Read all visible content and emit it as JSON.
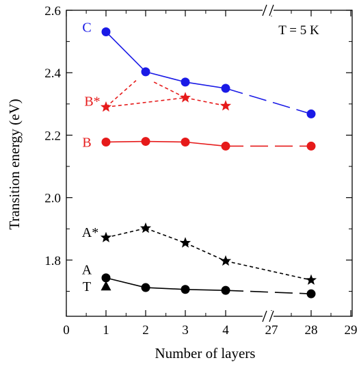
{
  "chart_data": {
    "type": "line",
    "xlabel": "Number of layers",
    "ylabel": "Transition energy (eV)",
    "x_ticks": [
      "0",
      "1",
      "2",
      "3",
      "4",
      "27",
      "28",
      "29"
    ],
    "y_ticks": [
      "1.8",
      "2.0",
      "2.2",
      "2.4",
      "2.6"
    ],
    "ylim": [
      1.62,
      2.6
    ],
    "x_axis_break": "between 4 and 27",
    "grid": false,
    "legend": "none",
    "annotation": "T = 5 K",
    "series": [
      {
        "name": "C",
        "color": "#1a1ae6",
        "style": "solid",
        "marker": "circle",
        "points": [
          {
            "x": 1,
            "y": 2.531
          },
          {
            "x": 2,
            "y": 2.403
          },
          {
            "x": 3,
            "y": 2.37
          },
          {
            "x": 4,
            "y": 2.35
          },
          {
            "x": 28,
            "y": 2.268
          }
        ]
      },
      {
        "name": "B*",
        "color": "#e61a1a",
        "style": "dashed",
        "marker": "star",
        "points": [
          {
            "x": 1,
            "y": 2.29
          },
          {
            "x": 3,
            "y": 2.32
          },
          {
            "x": 4,
            "y": 2.294
          }
        ]
      },
      {
        "name": "B",
        "color": "#e61a1a",
        "style": "solid",
        "marker": "circle",
        "points": [
          {
            "x": 1,
            "y": 2.178
          },
          {
            "x": 2,
            "y": 2.18
          },
          {
            "x": 3,
            "y": 2.178
          },
          {
            "x": 4,
            "y": 2.165
          },
          {
            "x": 28,
            "y": 2.165
          }
        ]
      },
      {
        "name": "A*",
        "color": "#000000",
        "style": "dashed",
        "marker": "star",
        "points": [
          {
            "x": 1,
            "y": 1.872
          },
          {
            "x": 2,
            "y": 1.902
          },
          {
            "x": 3,
            "y": 1.855
          },
          {
            "x": 4,
            "y": 1.797
          },
          {
            "x": 28,
            "y": 1.736
          }
        ]
      },
      {
        "name": "A",
        "color": "#000000",
        "style": "solid",
        "marker": "circle",
        "points": [
          {
            "x": 1,
            "y": 1.743
          },
          {
            "x": 2,
            "y": 1.712
          },
          {
            "x": 3,
            "y": 1.706
          },
          {
            "x": 4,
            "y": 1.703
          },
          {
            "x": 28,
            "y": 1.692
          }
        ]
      },
      {
        "name": "T",
        "color": "#000000",
        "style": "none",
        "marker": "triangle",
        "points": [
          {
            "x": 1,
            "y": 1.716
          }
        ]
      }
    ]
  }
}
